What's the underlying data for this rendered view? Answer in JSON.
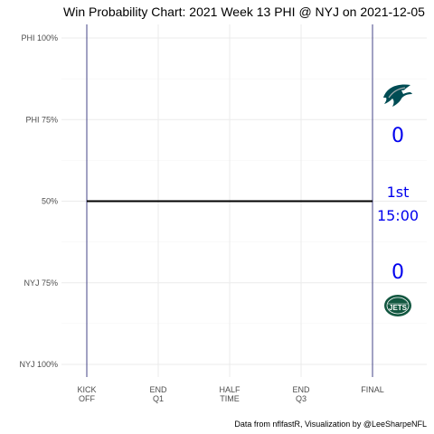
{
  "chart_data": {
    "type": "line",
    "title": "Win Probability Chart: 2021 Week 13 PHI @ NYJ on 2021-12-05",
    "xlabel": "",
    "ylabel": "",
    "x_ticks": [
      {
        "value": 0,
        "label": [
          "KICK",
          "OFF"
        ]
      },
      {
        "value": 900,
        "label": [
          "END",
          "Q1"
        ]
      },
      {
        "value": 1800,
        "label": [
          "HALF",
          "TIME"
        ]
      },
      {
        "value": 2700,
        "label": [
          "END",
          "Q3"
        ]
      },
      {
        "value": 3600,
        "label": [
          "FINAL"
        ]
      }
    ],
    "y_ticks": [
      {
        "value": 1.0,
        "label": "PHI 100%"
      },
      {
        "value": 0.75,
        "label": "PHI 75%"
      },
      {
        "value": 0.5,
        "label": "50%"
      },
      {
        "value": 0.25,
        "label": "NYJ 75%"
      },
      {
        "value": 0.0,
        "label": "NYJ 100%"
      }
    ],
    "xlim": [
      0,
      3600
    ],
    "ylim": [
      0,
      1
    ],
    "grid": true,
    "series": [
      {
        "x": [
          0,
          3600
        ],
        "values": [
          0.5,
          0.5
        ]
      }
    ],
    "vlines": [
      0,
      3600
    ],
    "annotations": {
      "home_score": "0",
      "away_score": "0",
      "quarter": "1st",
      "clock": "15:00"
    },
    "caption": "Data from nflfastR, Visualization by @LeeSharpeNFL"
  },
  "colors": {
    "score_text": "#0000ee",
    "vline": "#1a1a6e",
    "eagles": "#004c54",
    "jets": "#125740"
  },
  "logos": {
    "top": "eagles-logo",
    "bottom": "jets-logo",
    "jets_wordmark": "JETS"
  }
}
